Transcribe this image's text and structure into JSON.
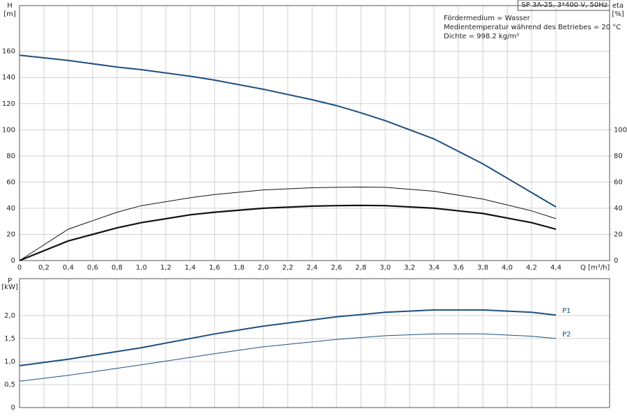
{
  "chart_data": [
    {
      "type": "line",
      "title": "SP 3A-25, 3*400 V, 50Hz",
      "annotations": [
        "Fördermedium = Wasser",
        "Medientemperatur während des Betriebes = 20 °C",
        "Dichte = 998.2 kg/m³"
      ],
      "ylabel": "H",
      "yunit": "[m]",
      "y2label": "eta",
      "y2unit": "[%]",
      "xlabel": "Q [m³/h]",
      "x": [
        0,
        0.4,
        0.8,
        1.0,
        1.4,
        1.6,
        2.0,
        2.4,
        2.6,
        2.8,
        3.0,
        3.4,
        3.8,
        4.2,
        4.4
      ],
      "xlim": [
        0,
        4.84
      ],
      "xticks": [
        0,
        {
          "value": 0.2,
          "label": "0,2"
        },
        {
          "value": 0.4,
          "label": "0,4"
        },
        {
          "value": 0.6,
          "label": "0,6"
        },
        {
          "value": 0.8,
          "label": "0,8"
        },
        {
          "value": 1.0,
          "label": "1,0"
        },
        {
          "value": 1.2,
          "label": "1,2"
        },
        {
          "value": 1.4,
          "label": "1,4"
        },
        {
          "value": 1.6,
          "label": "1,6"
        },
        {
          "value": 1.8,
          "label": "1,8"
        },
        {
          "value": 2.0,
          "label": "2,0"
        },
        {
          "value": 2.2,
          "label": "2,2"
        },
        {
          "value": 2.4,
          "label": "2,4"
        },
        {
          "value": 2.6,
          "label": "2,6"
        },
        {
          "value": 2.8,
          "label": "2,8"
        },
        {
          "value": 3.0,
          "label": "3,0"
        },
        {
          "value": 3.2,
          "label": "3,2"
        },
        {
          "value": 3.4,
          "label": "3,4"
        },
        {
          "value": 3.6,
          "label": "3,6"
        },
        {
          "value": 3.8,
          "label": "3,8"
        },
        {
          "value": 4.0,
          "label": "4,0"
        },
        {
          "value": 4.2,
          "label": "4,2"
        },
        {
          "value": 4.4,
          "label": "4,4"
        }
      ],
      "ylim": [
        0,
        195
      ],
      "yticks": [
        0,
        20,
        40,
        60,
        80,
        100,
        120,
        140,
        160
      ],
      "y2lim": [
        0,
        195
      ],
      "y2ticks": [
        0,
        20,
        40,
        60,
        80,
        100
      ],
      "grid": true,
      "series": [
        {
          "color": "#1c4f80",
          "width": 2,
          "values": [
            157,
            153,
            148,
            146,
            141,
            138,
            131,
            123,
            118.5,
            113,
            107,
            93,
            74,
            52,
            41
          ]
        },
        {
          "color": "#111111",
          "width": 1,
          "axis": "y2",
          "values": [
            0,
            24,
            37,
            42,
            48,
            50.5,
            54,
            55.7,
            56,
            56.2,
            56,
            53,
            47,
            38,
            32
          ]
        },
        {
          "color": "#111111",
          "width": 2.2,
          "axis": "y2",
          "values": [
            0,
            15,
            25,
            29,
            35,
            37,
            40,
            41.6,
            42,
            42.2,
            42,
            40,
            36,
            29,
            24
          ]
        }
      ]
    },
    {
      "type": "line",
      "ylabel": "P",
      "yunit": "[kW]",
      "x": [
        0,
        0.4,
        1.0,
        1.6,
        2.0,
        2.6,
        3.0,
        3.4,
        3.8,
        4.2,
        4.4
      ],
      "xlim": [
        0,
        4.84
      ],
      "xticks": [
        0,
        0.2,
        0.4,
        0.6,
        0.8,
        1.0,
        1.2,
        1.4,
        1.6,
        1.8,
        2.0,
        2.2,
        2.4,
        2.6,
        2.8,
        3.0,
        3.2,
        3.4,
        3.6,
        3.8,
        4.0,
        4.2,
        4.4
      ],
      "ylim": [
        0,
        2.8
      ],
      "yticks": [
        0,
        {
          "value": 0.5,
          "label": "0,5"
        },
        {
          "value": 1.0,
          "label": "1,0"
        },
        {
          "value": 1.5,
          "label": "1,5"
        },
        {
          "value": 2.0,
          "label": "2,0"
        }
      ],
      "grid": true,
      "series": [
        {
          "name": "P1",
          "color": "#1c4f80",
          "width": 2,
          "values": [
            0.91,
            1.05,
            1.3,
            1.6,
            1.77,
            1.97,
            2.07,
            2.12,
            2.12,
            2.07,
            2.01
          ]
        },
        {
          "name": "P2",
          "color": "#1c4f80",
          "width": 1,
          "values": [
            0.57,
            0.7,
            0.93,
            1.17,
            1.32,
            1.48,
            1.56,
            1.6,
            1.6,
            1.55,
            1.5
          ]
        }
      ]
    }
  ]
}
